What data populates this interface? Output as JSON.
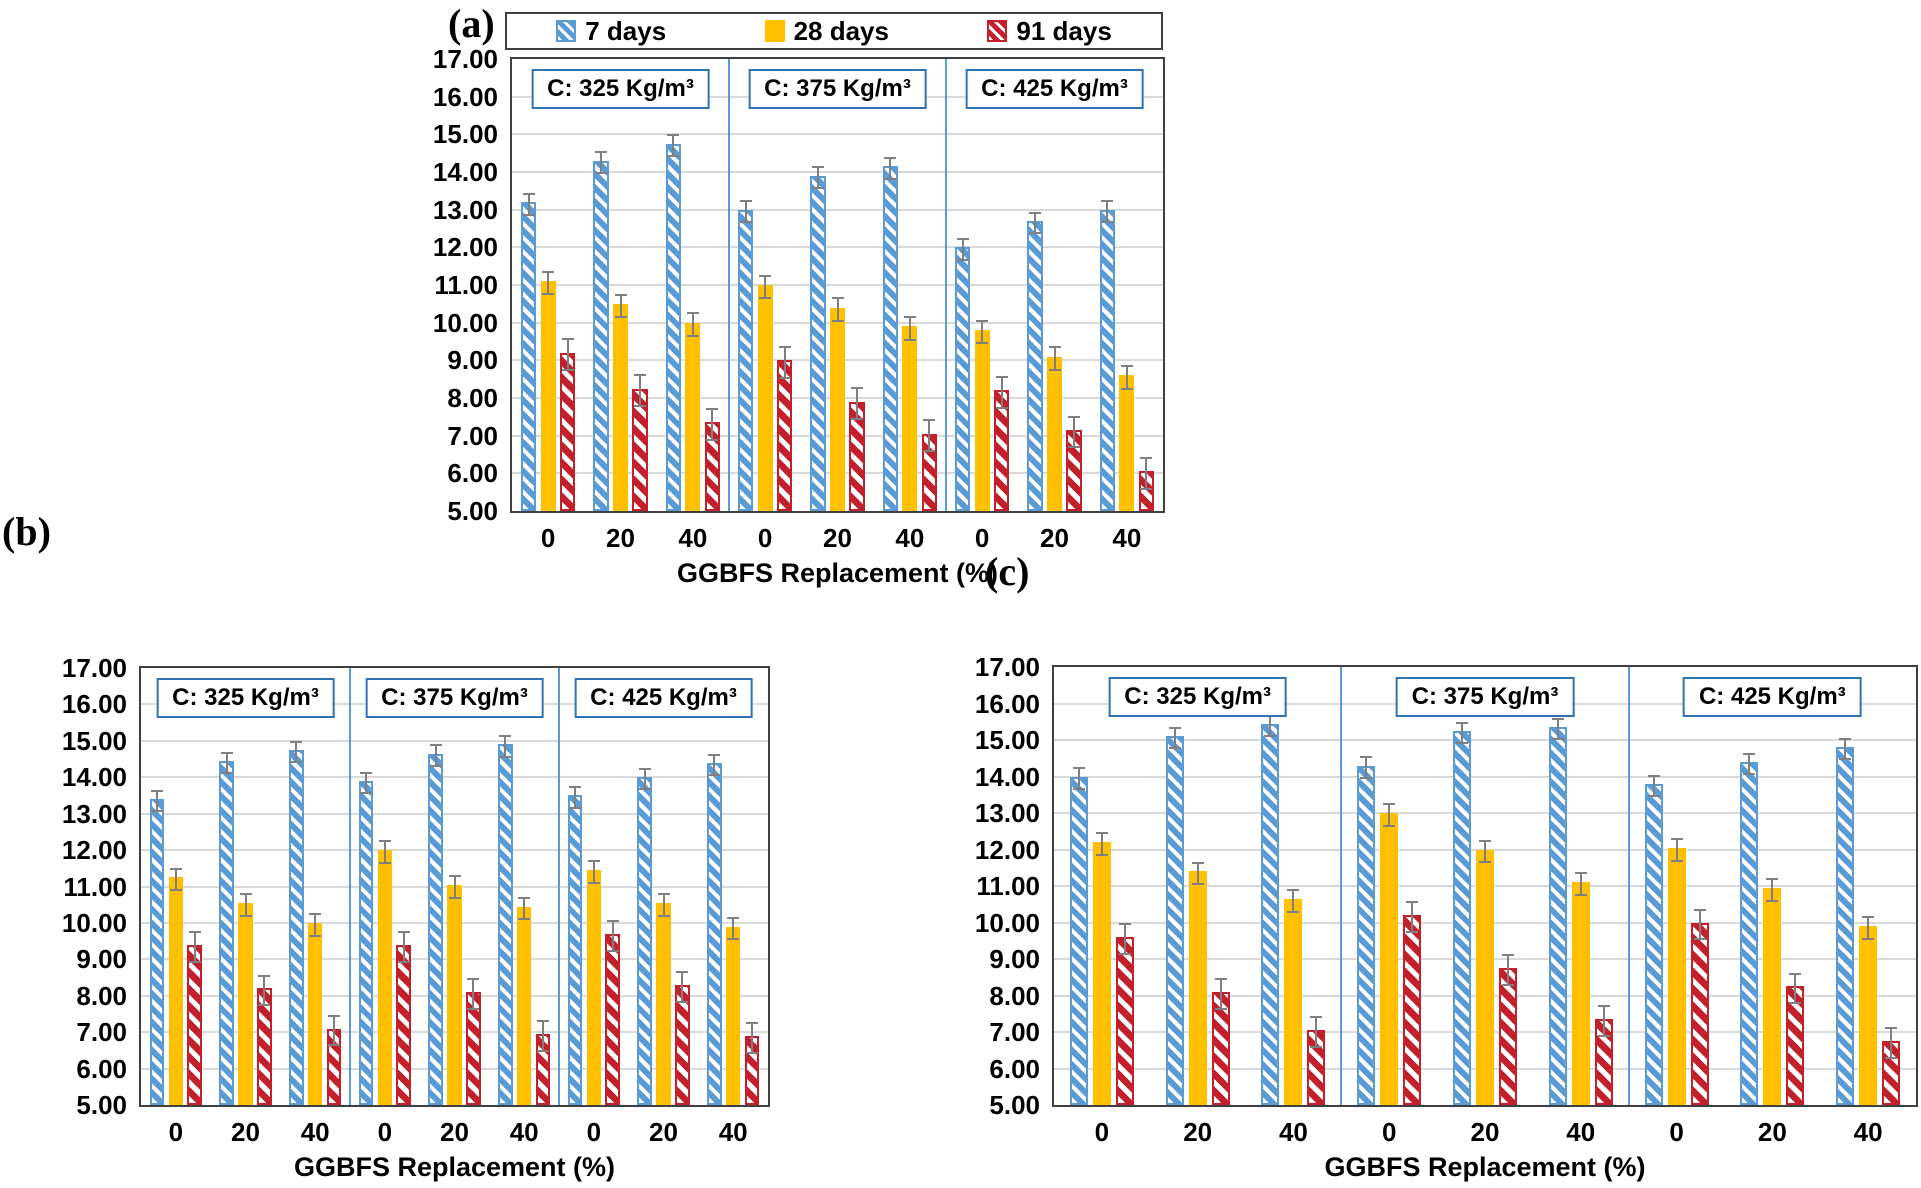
{
  "legend": {
    "items": [
      {
        "label": "7 days"
      },
      {
        "label": "28 days"
      },
      {
        "label": "91 days"
      }
    ]
  },
  "axis": {
    "y_ticks": [
      "17.00",
      "16.00",
      "15.00",
      "14.00",
      "13.00",
      "12.00",
      "11.00",
      "10.00",
      "9.00",
      "8.00",
      "7.00",
      "6.00",
      "5.00"
    ],
    "x_title": "GGBFS Replacement (%)"
  },
  "errors": {
    "by_series": [
      0.25,
      0.27,
      0.38
    ]
  },
  "style": {
    "series_colors": {
      "days7": "#5B9BD5",
      "days28": "#FFC000",
      "days91": "#C3202B"
    },
    "error_bar": "#7F7F7F",
    "gridline": "#D9D9D9",
    "divider": "#5B9BD5",
    "plot_border": "#3F3F3F",
    "panel_title_border": "#2E74B5"
  },
  "chart_data": [
    {
      "id": "a",
      "label": "(a)",
      "type": "bar",
      "ylim": [
        5,
        17
      ],
      "ytick_step": 1,
      "grid": true,
      "legend_position": "top",
      "categories": [
        "0",
        "20",
        "40"
      ],
      "xlabel": "GGBFS Replacement (%)",
      "panels": [
        {
          "label": "C: 325 Kg/m³",
          "series": [
            {
              "name": "7 days",
              "values": [
                13.2,
                14.3,
                14.75
              ]
            },
            {
              "name": "28 days",
              "values": [
                11.1,
                10.5,
                10.0
              ]
            },
            {
              "name": "91 days",
              "values": [
                9.2,
                8.25,
                7.35
              ]
            }
          ]
        },
        {
          "label": "C: 375 Kg/m³",
          "series": [
            {
              "name": "7 days",
              "values": [
                13.0,
                13.9,
                14.15
              ]
            },
            {
              "name": "28 days",
              "values": [
                11.0,
                10.4,
                9.9
              ]
            },
            {
              "name": "91 days",
              "values": [
                9.0,
                7.9,
                7.05
              ]
            }
          ]
        },
        {
          "label": "C: 425 Kg/m³",
          "series": [
            {
              "name": "7 days",
              "values": [
                12.0,
                12.7,
                13.0
              ]
            },
            {
              "name": "28 days",
              "values": [
                9.8,
                9.1,
                8.6
              ]
            },
            {
              "name": "91 days",
              "values": [
                8.2,
                7.15,
                6.05
              ]
            }
          ]
        }
      ]
    },
    {
      "id": "b",
      "label": "(b)",
      "type": "bar",
      "ylim": [
        5,
        17
      ],
      "ytick_step": 1,
      "grid": true,
      "legend_position": "none",
      "categories": [
        "0",
        "20",
        "40"
      ],
      "xlabel": "GGBFS Replacement (%)",
      "panels": [
        {
          "label": "C: 325 Kg/m³",
          "series": [
            {
              "name": "7 days",
              "values": [
                13.4,
                14.45,
                14.75
              ]
            },
            {
              "name": "28 days",
              "values": [
                11.25,
                10.55,
                10.0
              ]
            },
            {
              "name": "91 days",
              "values": [
                9.4,
                8.2,
                7.1
              ]
            }
          ]
        },
        {
          "label": "C: 375 Kg/m³",
          "series": [
            {
              "name": "7 days",
              "values": [
                13.9,
                14.65,
                14.9
              ]
            },
            {
              "name": "28 days",
              "values": [
                12.0,
                11.05,
                10.45
              ]
            },
            {
              "name": "91 days",
              "values": [
                9.4,
                8.1,
                6.95
              ]
            }
          ]
        },
        {
          "label": "C: 425 Kg/m³",
          "series": [
            {
              "name": "7 days",
              "values": [
                13.5,
                14.0,
                14.4
              ]
            },
            {
              "name": "28 days",
              "values": [
                11.45,
                10.55,
                9.9
              ]
            },
            {
              "name": "91 days",
              "values": [
                9.7,
                8.3,
                6.9
              ]
            }
          ]
        }
      ]
    },
    {
      "id": "c",
      "label": "(c)",
      "type": "bar",
      "ylim": [
        5,
        17
      ],
      "ytick_step": 1,
      "grid": true,
      "legend_position": "none",
      "categories": [
        "0",
        "20",
        "40"
      ],
      "xlabel": "GGBFS Replacement (%)",
      "panels": [
        {
          "label": "C: 325 Kg/m³",
          "series": [
            {
              "name": "7 days",
              "values": [
                14.0,
                15.1,
                15.45
              ]
            },
            {
              "name": "28 days",
              "values": [
                12.2,
                11.4,
                10.65
              ]
            },
            {
              "name": "91 days",
              "values": [
                9.6,
                8.1,
                7.05
              ]
            }
          ]
        },
        {
          "label": "C: 375 Kg/m³",
          "series": [
            {
              "name": "7 days",
              "values": [
                14.3,
                15.25,
                15.35
              ]
            },
            {
              "name": "28 days",
              "values": [
                13.0,
                12.0,
                11.1
              ]
            },
            {
              "name": "91 days",
              "values": [
                10.2,
                8.75,
                7.35
              ]
            }
          ]
        },
        {
          "label": "C: 425 Kg/m³",
          "series": [
            {
              "name": "7 days",
              "values": [
                13.8,
                14.4,
                14.8
              ]
            },
            {
              "name": "28 days",
              "values": [
                12.05,
                10.95,
                9.9
              ]
            },
            {
              "name": "91 days",
              "values": [
                10.0,
                8.25,
                6.75
              ]
            }
          ]
        }
      ]
    }
  ]
}
